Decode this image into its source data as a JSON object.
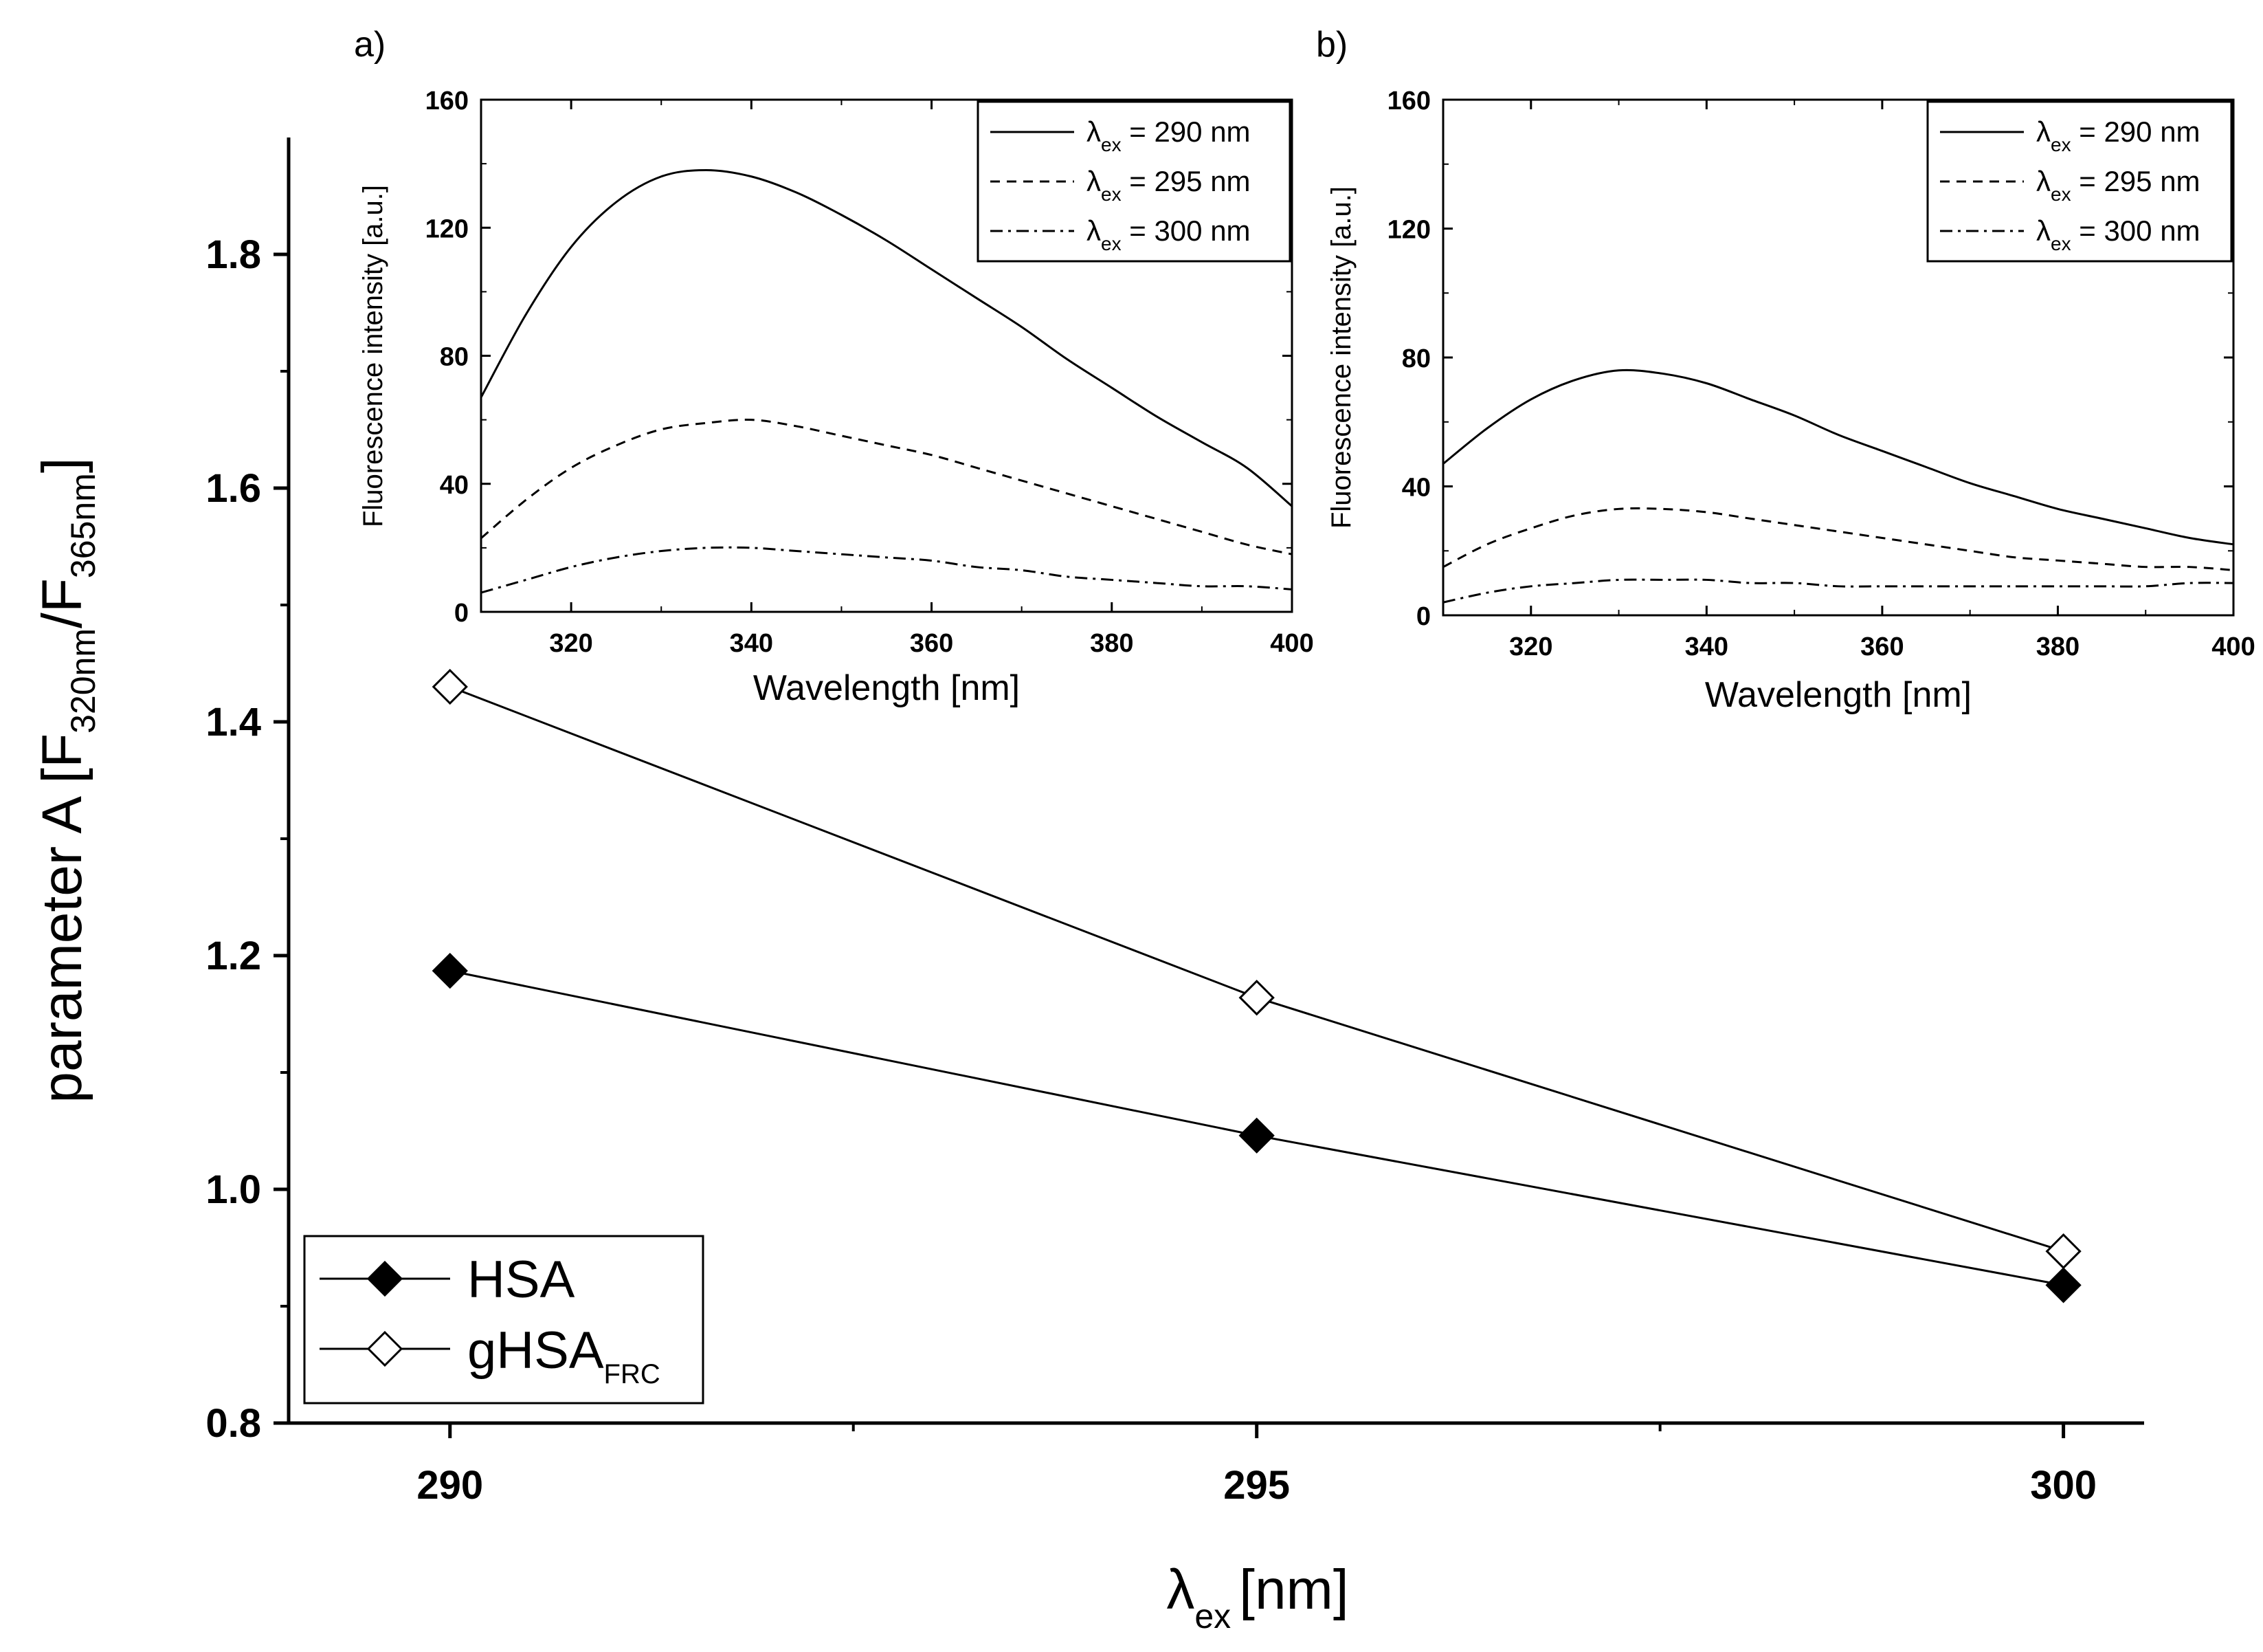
{
  "chart_data": [
    {
      "id": "main",
      "type": "line",
      "ylabel": "parameter A [F",
      "ylabel_sub1": "320nm",
      "ylabel_mid": "/F",
      "ylabel_sub2": "365nm",
      "ylabel_end": "]",
      "xlabel_symbol": "λ",
      "xlabel_sub": "ex",
      "xlabel_unit": "[nm]",
      "x": [
        290,
        295,
        300
      ],
      "xlim": [
        289,
        300.5
      ],
      "ylim": [
        0.8,
        1.9
      ],
      "xticks": [
        290,
        295,
        300
      ],
      "xtick_labels": [
        "290",
        "295",
        "300"
      ],
      "xminor": [
        292.5,
        297.5
      ],
      "yticks": [
        0.8,
        1.0,
        1.2,
        1.4,
        1.6,
        1.8
      ],
      "ytick_labels": [
        "0.8",
        "1.0",
        "1.2",
        "1.4",
        "1.6",
        "1.8"
      ],
      "yminor": [
        0.9,
        1.1,
        1.3,
        1.5,
        1.7
      ],
      "legend_position": "bottom-left",
      "series": [
        {
          "name": "HSA",
          "name_sub": "",
          "marker": "filled-diamond",
          "values": [
            1.187,
            1.046,
            0.918
          ]
        },
        {
          "name": "gHSA",
          "name_sub": "FRC",
          "marker": "open-diamond",
          "values": [
            1.43,
            1.164,
            0.947
          ]
        }
      ]
    },
    {
      "id": "inset_a",
      "type": "line",
      "panel_label": "a)",
      "xlabel": "Wavelength [nm]",
      "ylabel": "Fluorescence intensity [a.u.]",
      "xlim": [
        310,
        400
      ],
      "ylim": [
        0,
        160
      ],
      "xticks": [
        320,
        340,
        360,
        380,
        400
      ],
      "xtick_labels": [
        "320",
        "340",
        "360",
        "380",
        "400"
      ],
      "yticks": [
        0,
        40,
        80,
        120,
        160
      ],
      "ytick_labels": [
        "0",
        "40",
        "80",
        "120",
        "160"
      ],
      "legend_position": "top-right",
      "x": [
        310,
        315,
        320,
        325,
        330,
        335,
        340,
        345,
        350,
        355,
        360,
        365,
        370,
        375,
        380,
        385,
        390,
        395,
        400
      ],
      "series": [
        {
          "name": "λ",
          "name_sub": "ex",
          "name_rest": " = 290 nm",
          "style": "solid",
          "values": [
            67,
            93,
            114,
            128,
            136,
            138,
            136,
            131,
            124,
            116,
            107,
            98,
            89,
            79,
            70,
            61,
            53,
            45,
            33
          ]
        },
        {
          "name": "λ",
          "name_sub": "ex",
          "name_rest": " = 295 nm",
          "style": "dash",
          "values": [
            23,
            35,
            45,
            52,
            57,
            59,
            60,
            58,
            55,
            52,
            49,
            45,
            41,
            37,
            33,
            29,
            25,
            21,
            18
          ]
        },
        {
          "name": "λ",
          "name_sub": "ex",
          "name_rest": " = 300 nm",
          "style": "dashdot",
          "values": [
            6,
            10,
            14,
            17,
            19,
            20,
            20,
            19,
            18,
            17,
            16,
            14,
            13,
            11,
            10,
            9,
            8,
            8,
            7
          ]
        }
      ]
    },
    {
      "id": "inset_b",
      "type": "line",
      "panel_label": "b)",
      "xlabel": "Wavelength [nm]",
      "ylabel": "Fluorescence intensity [a.u.]",
      "xlim": [
        310,
        400
      ],
      "ylim": [
        0,
        160
      ],
      "xticks": [
        320,
        340,
        360,
        380,
        400
      ],
      "xtick_labels": [
        "320",
        "340",
        "360",
        "380",
        "400"
      ],
      "yticks": [
        0,
        40,
        80,
        120,
        160
      ],
      "ytick_labels": [
        "0",
        "40",
        "80",
        "120",
        "160"
      ],
      "legend_position": "top-right",
      "x": [
        310,
        315,
        320,
        325,
        330,
        335,
        340,
        345,
        350,
        355,
        360,
        365,
        370,
        375,
        380,
        385,
        390,
        395,
        400
      ],
      "series": [
        {
          "name": "λ",
          "name_sub": "ex",
          "name_rest": " = 290 nm",
          "style": "solid",
          "values": [
            47,
            58,
            67,
            73,
            76,
            75,
            72,
            67,
            62,
            56,
            51,
            46,
            41,
            37,
            33,
            30,
            27,
            24,
            22
          ]
        },
        {
          "name": "λ",
          "name_sub": "ex",
          "name_rest": " = 295 nm",
          "style": "dash",
          "values": [
            15,
            22,
            27,
            31,
            33,
            33,
            32,
            30,
            28,
            26,
            24,
            22,
            20,
            18,
            17,
            16,
            15,
            15,
            14
          ]
        },
        {
          "name": "λ",
          "name_sub": "ex",
          "name_rest": " = 300 nm",
          "style": "dashdot",
          "values": [
            4,
            7,
            9,
            10,
            11,
            11,
            11,
            10,
            10,
            9,
            9,
            9,
            9,
            9,
            9,
            9,
            9,
            10,
            10
          ]
        }
      ]
    }
  ]
}
